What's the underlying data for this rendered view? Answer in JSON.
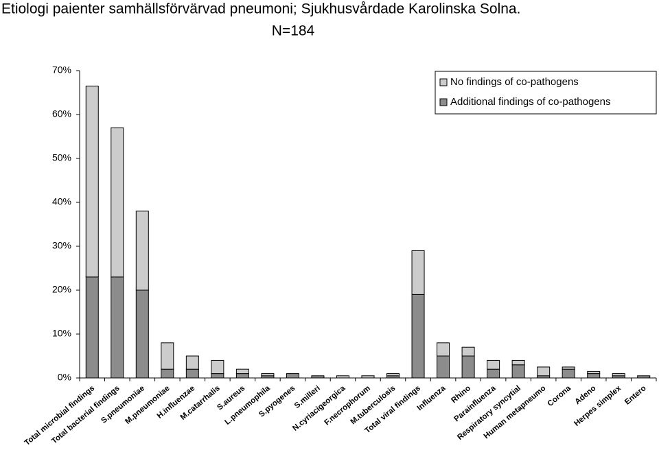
{
  "chart_data": {
    "type": "stacked-bar",
    "title": "Etiologi paienter samhällsförvärvad pneumoni; Sjukhusvårdade Karolinska Solna.",
    "subtitle": "N=184",
    "categories": [
      "Total microbial findings",
      "Total bacterial findings",
      "S.pneumoniae",
      "M.pneumoniae",
      "H.influenzae",
      "M.catarrhalis",
      "S.aureus",
      "L.pneumophila",
      "S.pyogenes",
      "S.milleri",
      "N.cyriacigeorgica",
      "F.necrophorum",
      "M.tuberculosis",
      "Total viral findings",
      "Influenza",
      "Rhino",
      "Parainfluenza",
      "Respiratory syncytial",
      "Human metapneumo",
      "Corona",
      "Adeno",
      "Herpes simplex",
      "Entero"
    ],
    "series": [
      {
        "name": "No findings of co-pathogens",
        "color": "#cccccc",
        "values": [
          43.5,
          34,
          18,
          6,
          3,
          3,
          1,
          0.5,
          0,
          0,
          0.5,
          0.5,
          0.5,
          10,
          3,
          2,
          2,
          1,
          2,
          0.5,
          0.5,
          0.5,
          0
        ]
      },
      {
        "name": "Additional findings of co-pathogens",
        "color": "#8c8c8c",
        "values": [
          23,
          23,
          20,
          2,
          2,
          1,
          1,
          0.5,
          1,
          0.5,
          0,
          0,
          0.5,
          19,
          5,
          5,
          2,
          3,
          0.5,
          2,
          1,
          0.5,
          0.5
        ]
      }
    ],
    "ylim": [
      0,
      70
    ],
    "yticks": [
      {
        "value": 0,
        "label": "0%"
      },
      {
        "value": 10,
        "label": "10%"
      },
      {
        "value": 20,
        "label": "20%"
      },
      {
        "value": 30,
        "label": "30%"
      },
      {
        "value": 40,
        "label": "40%"
      },
      {
        "value": 50,
        "label": "50%"
      },
      {
        "value": 60,
        "label": "60%"
      },
      {
        "value": 70,
        "label": "70%"
      }
    ],
    "grid": false,
    "legend": "top-right"
  }
}
